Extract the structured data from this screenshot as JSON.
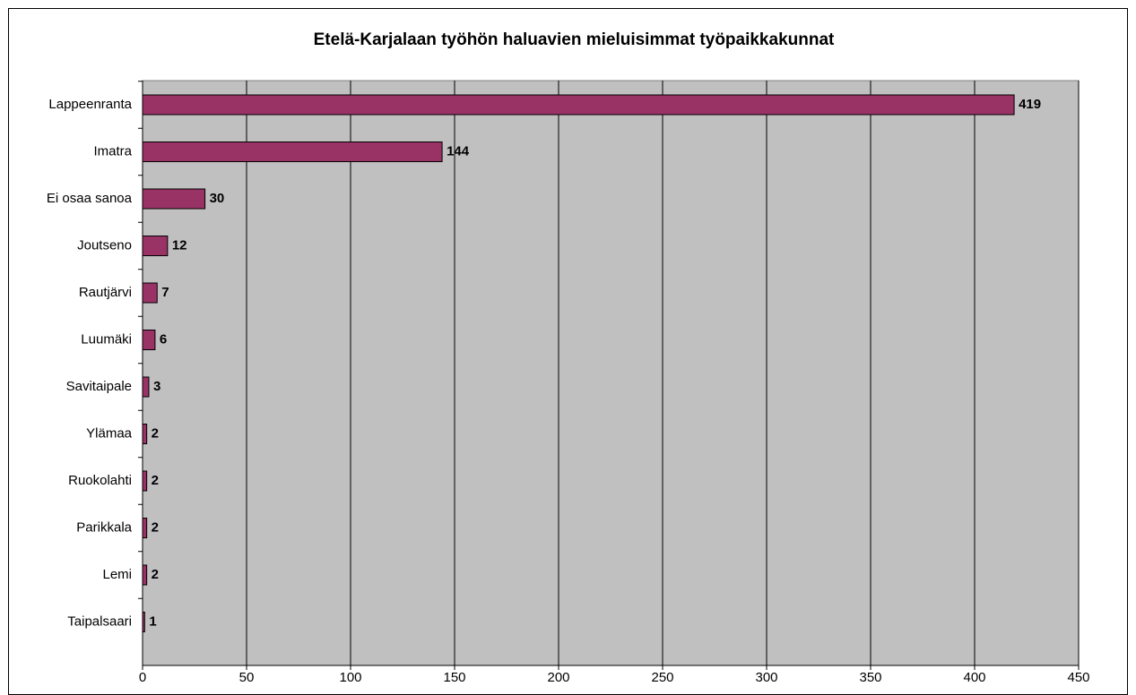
{
  "chart_data": {
    "type": "bar",
    "orientation": "horizontal",
    "title": "Etelä-Karjalaan työhön haluavien mieluisimmat  työpaikkakunnat",
    "categories": [
      "Lappeenranta",
      "Imatra",
      "Ei osaa sanoa",
      "Joutseno",
      "Rautjärvi",
      "Luumäki",
      "Savitaipale",
      "Ylämaa",
      "Ruokolahti",
      "Parikkala",
      "Lemi",
      "Taipalsaari"
    ],
    "values": [
      419,
      144,
      30,
      12,
      7,
      6,
      3,
      2,
      2,
      2,
      2,
      1
    ],
    "color": "#993366",
    "xlim": [
      0,
      450
    ],
    "xticks": [
      0,
      50,
      100,
      150,
      200,
      250,
      300,
      350,
      400,
      450
    ],
    "grid": true
  }
}
